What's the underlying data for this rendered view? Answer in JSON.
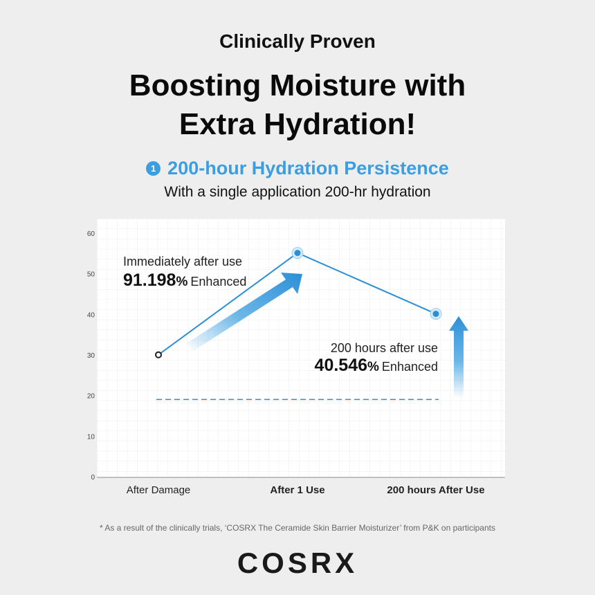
{
  "eyebrow": "Clinically Proven",
  "headline_line1": "Boosting Moisture with",
  "headline_line2": "Extra Hydration!",
  "section": {
    "number": "1",
    "title": "200-hour Hydration Persistence",
    "subtitle": "With a single application 200-hr hydration"
  },
  "chart_data": {
    "type": "line",
    "categories": [
      "After Damage",
      "After 1 Use",
      "200 hours After Use"
    ],
    "values": [
      30.2,
      55.3,
      40.3
    ],
    "baseline": 19.2,
    "ylim": [
      0,
      60
    ],
    "yticks": [
      "0",
      "10",
      "20",
      "30",
      "40",
      "50",
      "60"
    ],
    "grid": true,
    "annotations": [
      {
        "label": "Immediately after use",
        "value": "91.198",
        "unit": "%",
        "suffix": "Enhanced"
      },
      {
        "label": "200 hours after use",
        "value": "40.546",
        "unit": "%",
        "suffix": "Enhanced"
      }
    ],
    "colors": {
      "line": "#2c8fd6",
      "accent": "#3a9ee0",
      "baseline": "#2c8fd6",
      "marker_start": "#222222"
    }
  },
  "footnote": "* As a result of the clinically trials, ‘COSRX The Ceramide Skin Barrier Moisturizer’ from P&K on participants",
  "brand": "COSRX"
}
